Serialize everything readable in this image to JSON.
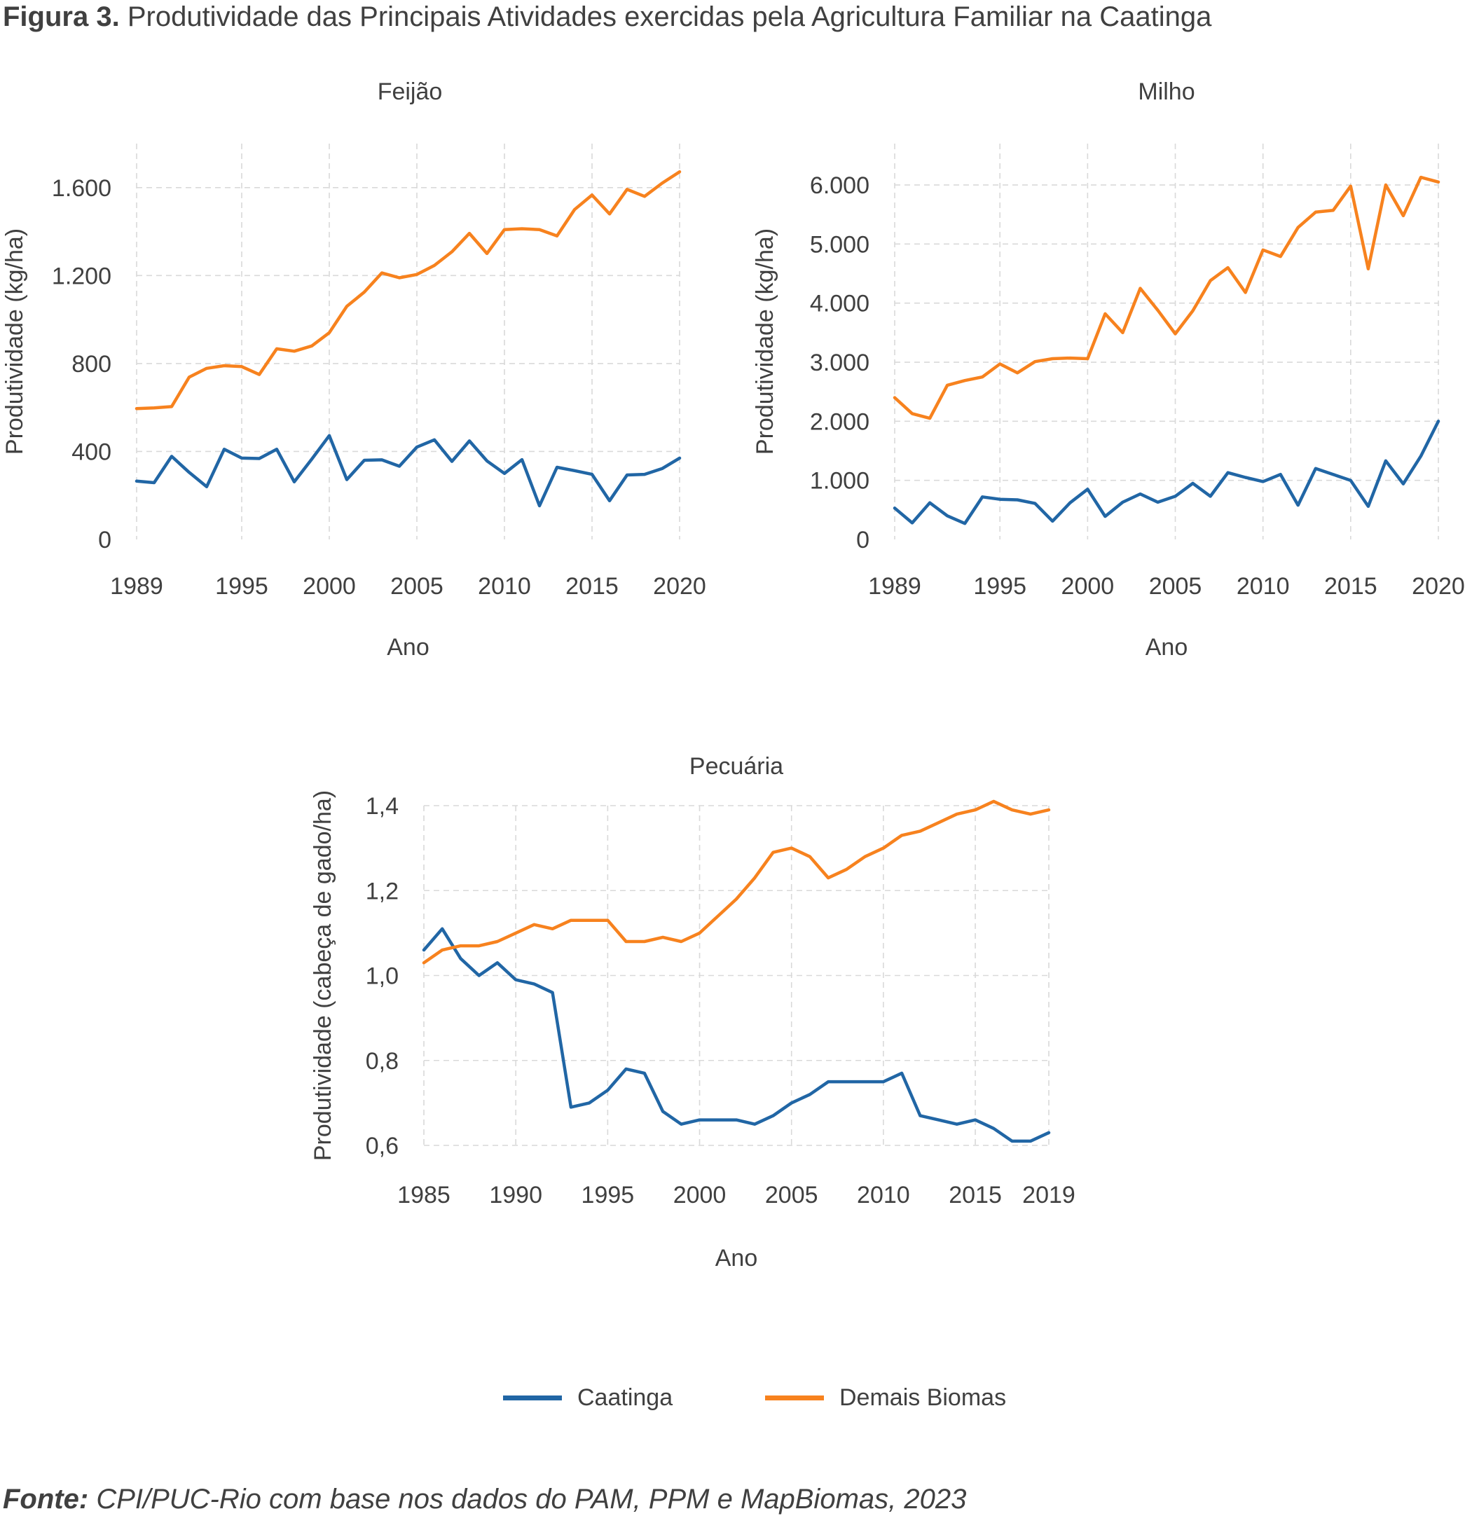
{
  "figure": {
    "label": "Figura 3.",
    "title": "Produtividade das Principais Atividades exercidas pela Agricultura Familiar na Caatinga",
    "source_label": "Fonte:",
    "source_text": "CPI/PUC-Rio com base nos dados do PAM, PPM e MapBiomas, 2023"
  },
  "legend": [
    {
      "name": "Caatinga",
      "color": "#2166a5"
    },
    {
      "name": "Demais Biomas",
      "color": "#f7821e"
    }
  ],
  "chart_data": [
    {
      "type": "line",
      "title": "Feijão",
      "xlabel": "Ano",
      "ylabel": "Produtividade (kg/ha)",
      "xlim": [
        1989,
        2020
      ],
      "ylim": [
        0,
        1800
      ],
      "xticks": [
        1989,
        1995,
        2000,
        2005,
        2010,
        2015,
        2020
      ],
      "xtick_labels": [
        "1989",
        "1995",
        "2000",
        "2005",
        "2010",
        "2015",
        "2020"
      ],
      "yticks": [
        0,
        400,
        800,
        1200,
        1600
      ],
      "ytick_labels": [
        "0",
        "400",
        "800",
        "1.200",
        "1.600"
      ],
      "grid": true,
      "x": [
        1989,
        1990,
        1991,
        1992,
        1993,
        1994,
        1995,
        1996,
        1997,
        1998,
        1999,
        2000,
        2001,
        2002,
        2003,
        2004,
        2005,
        2006,
        2007,
        2008,
        2009,
        2010,
        2011,
        2012,
        2013,
        2014,
        2015,
        2016,
        2017,
        2018,
        2019,
        2020
      ],
      "series": [
        {
          "name": "Caatinga",
          "color": "#2166a5",
          "values": [
            265,
            258,
            378,
            305,
            240,
            410,
            370,
            368,
            410,
            262,
            365,
            472,
            272,
            360,
            362,
            333,
            420,
            453,
            355,
            448,
            357,
            300,
            363,
            153,
            328,
            313,
            296,
            176,
            293,
            296,
            322,
            370
          ]
        },
        {
          "name": "Demais Biomas",
          "color": "#f7821e",
          "values": [
            595,
            598,
            604,
            738,
            778,
            790,
            786,
            750,
            867,
            856,
            880,
            940,
            1060,
            1125,
            1212,
            1190,
            1205,
            1246,
            1308,
            1392,
            1300,
            1409,
            1413,
            1409,
            1380,
            1500,
            1566,
            1480,
            1592,
            1560,
            1620,
            1672
          ]
        }
      ]
    },
    {
      "type": "line",
      "title": "Milho",
      "xlabel": "Ano",
      "ylabel": "Produtividade (kg/ha)",
      "xlim": [
        1989,
        2020
      ],
      "ylim": [
        0,
        6700
      ],
      "xticks": [
        1989,
        1995,
        2000,
        2005,
        2010,
        2015,
        2020
      ],
      "xtick_labels": [
        "1989",
        "1995",
        "2000",
        "2005",
        "2010",
        "2015",
        "2020"
      ],
      "yticks": [
        0,
        1000,
        2000,
        3000,
        4000,
        5000,
        6000
      ],
      "ytick_labels": [
        "0",
        "1.000",
        "2.000",
        "3.000",
        "4.000",
        "5.000",
        "6.000"
      ],
      "grid": true,
      "x": [
        1989,
        1990,
        1991,
        1992,
        1993,
        1994,
        1995,
        1996,
        1997,
        1998,
        1999,
        2000,
        2001,
        2002,
        2003,
        2004,
        2005,
        2006,
        2007,
        2008,
        2009,
        2010,
        2011,
        2012,
        2013,
        2014,
        2015,
        2016,
        2017,
        2018,
        2019,
        2020
      ],
      "series": [
        {
          "name": "Caatinga",
          "color": "#2166a5",
          "values": [
            530,
            280,
            620,
            400,
            270,
            720,
            680,
            670,
            610,
            310,
            620,
            850,
            390,
            630,
            770,
            630,
            730,
            950,
            730,
            1130,
            1050,
            980,
            1100,
            580,
            1200,
            1100,
            1000,
            560,
            1330,
            940,
            1410,
            2000
          ]
        },
        {
          "name": "Demais Biomas",
          "color": "#f7821e",
          "values": [
            2400,
            2130,
            2050,
            2610,
            2690,
            2750,
            2970,
            2820,
            3010,
            3060,
            3070,
            3060,
            3820,
            3500,
            4250,
            3880,
            3480,
            3870,
            4380,
            4600,
            4180,
            4900,
            4790,
            5280,
            5540,
            5570,
            5980,
            4580,
            6000,
            5480,
            6130,
            6050
          ]
        }
      ]
    },
    {
      "type": "line",
      "title": "Pecuária",
      "xlabel": "Ano",
      "ylabel": "Produtividade (cabeça de gado/ha)",
      "xlim": [
        1985,
        2019
      ],
      "ylim": [
        0.6,
        1.4
      ],
      "xticks": [
        1985,
        1990,
        1995,
        2000,
        2005,
        2010,
        2015,
        2019
      ],
      "xtick_labels": [
        "1985",
        "1990",
        "1995",
        "2000",
        "2005",
        "2010",
        "2015",
        "2019"
      ],
      "yticks": [
        0.6,
        0.8,
        1.0,
        1.2,
        1.4
      ],
      "ytick_labels": [
        "0,6",
        "0,8",
        "1,0",
        "1,2",
        "1,4"
      ],
      "grid": true,
      "x": [
        1985,
        1986,
        1987,
        1988,
        1989,
        1990,
        1991,
        1992,
        1993,
        1994,
        1995,
        1996,
        1997,
        1998,
        1999,
        2000,
        2001,
        2002,
        2003,
        2004,
        2005,
        2006,
        2007,
        2008,
        2009,
        2010,
        2011,
        2012,
        2013,
        2014,
        2015,
        2016,
        2017,
        2018,
        2019
      ],
      "series": [
        {
          "name": "Caatinga",
          "color": "#2166a5",
          "values": [
            1.06,
            1.11,
            1.04,
            1.0,
            1.03,
            0.99,
            0.98,
            0.96,
            0.69,
            0.7,
            0.73,
            0.78,
            0.77,
            0.68,
            0.65,
            0.66,
            0.66,
            0.66,
            0.65,
            0.67,
            0.7,
            0.72,
            0.75,
            0.75,
            0.75,
            0.75,
            0.77,
            0.67,
            0.66,
            0.65,
            0.66,
            0.64,
            0.61,
            0.61,
            0.63
          ]
        },
        {
          "name": "Demais Biomas",
          "color": "#f7821e",
          "values": [
            1.03,
            1.06,
            1.07,
            1.07,
            1.08,
            1.1,
            1.12,
            1.11,
            1.13,
            1.13,
            1.13,
            1.08,
            1.08,
            1.09,
            1.08,
            1.1,
            1.14,
            1.18,
            1.23,
            1.29,
            1.3,
            1.28,
            1.23,
            1.25,
            1.28,
            1.3,
            1.33,
            1.34,
            1.36,
            1.38,
            1.39,
            1.41,
            1.39,
            1.38,
            1.39
          ]
        }
      ]
    }
  ]
}
